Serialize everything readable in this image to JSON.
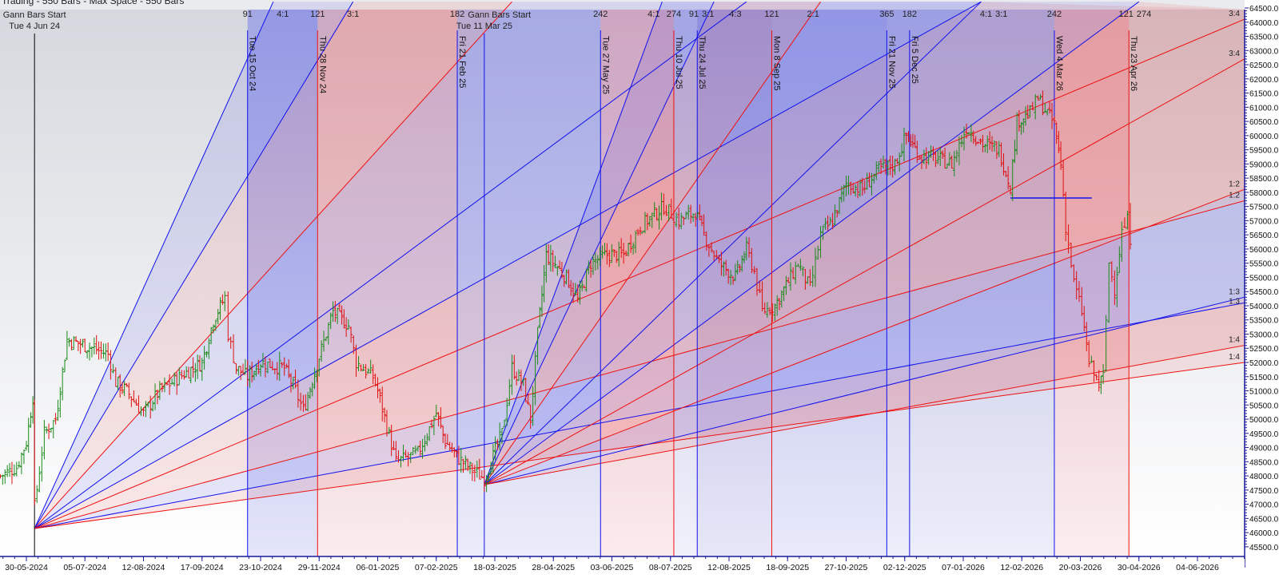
{
  "header": {
    "title": "Trading - 550 Bars - Max Space - 550 Bars"
  },
  "chart_data": {
    "type": "ohlc-bar",
    "price_axis": {
      "min": 45500,
      "max": 64500,
      "step": 500,
      "position": "right"
    },
    "x_ticks": [
      "30-05-2024",
      "05-07-2024",
      "12-08-2024",
      "17-09-2024",
      "23-10-2024",
      "29-11-2024",
      "06-01-2025",
      "07-02-2025",
      "18-03-2025",
      "28-04-2025",
      "03-06-2025",
      "08-07-2025",
      "12-08-2025",
      "18-09-2025",
      "27-10-2025",
      "02-12-2025",
      "07-01-2026",
      "12-02-2026",
      "20-03-2026",
      "30-04-2026",
      "04-06-2026"
    ],
    "colors": {
      "up_bar": "#1a8a1a",
      "down_bar": "#e01010",
      "blue_line": "#1010ee",
      "red_line": "#ee1010",
      "start_line": "#000000"
    },
    "price_path": [
      [
        "2024-05-14",
        48000
      ],
      [
        "2024-05-24",
        48300
      ],
      [
        "2024-05-30",
        49200
      ],
      [
        "2024-06-03",
        50800
      ],
      [
        "2024-06-04",
        46900
      ],
      [
        "2024-06-10",
        49500
      ],
      [
        "2024-06-17",
        50000
      ],
      [
        "2024-06-24",
        52800
      ],
      [
        "2024-07-05",
        52600
      ],
      [
        "2024-07-20",
        52300
      ],
      [
        "2024-07-25",
        51300
      ],
      [
        "2024-08-01",
        51000
      ],
      [
        "2024-08-12",
        50200
      ],
      [
        "2024-08-22",
        51000
      ],
      [
        "2024-09-06",
        51600
      ],
      [
        "2024-09-17",
        52000
      ],
      [
        "2024-09-24",
        53500
      ],
      [
        "2024-10-01",
        54300
      ],
      [
        "2024-10-03",
        53000
      ],
      [
        "2024-10-08",
        51800
      ],
      [
        "2024-10-15",
        51500
      ],
      [
        "2024-10-23",
        52000
      ],
      [
        "2024-11-07",
        51800
      ],
      [
        "2024-11-14",
        51000
      ],
      [
        "2024-11-19",
        50300
      ],
      [
        "2024-11-29",
        52200
      ],
      [
        "2024-12-08",
        53800
      ],
      [
        "2024-12-18",
        53300
      ],
      [
        "2024-12-23",
        52000
      ],
      [
        "2025-01-03",
        51500
      ],
      [
        "2025-01-06",
        51000
      ],
      [
        "2025-01-16",
        48500
      ],
      [
        "2025-01-28",
        48800
      ],
      [
        "2025-02-07",
        50200
      ],
      [
        "2025-02-13",
        49200
      ],
      [
        "2025-02-22",
        48600
      ],
      [
        "2025-03-03",
        48200
      ],
      [
        "2025-03-11",
        47900
      ],
      [
        "2025-03-23",
        49500
      ],
      [
        "2025-03-30",
        51800
      ],
      [
        "2025-04-07",
        51200
      ],
      [
        "2025-04-12",
        50000
      ],
      [
        "2025-04-17",
        53000
      ],
      [
        "2025-04-23",
        55800
      ],
      [
        "2025-05-06",
        55000
      ],
      [
        "2025-05-13",
        54200
      ],
      [
        "2025-05-21",
        55500
      ],
      [
        "2025-05-31",
        55800
      ],
      [
        "2025-06-10",
        55800
      ],
      [
        "2025-06-20",
        56800
      ],
      [
        "2025-07-04",
        57500
      ],
      [
        "2025-07-13",
        57000
      ],
      [
        "2025-07-23",
        57300
      ],
      [
        "2025-07-28",
        56500
      ],
      [
        "2025-08-06",
        55500
      ],
      [
        "2025-08-16",
        55000
      ],
      [
        "2025-08-23",
        56000
      ],
      [
        "2025-08-28",
        55200
      ],
      [
        "2025-09-02",
        53800
      ],
      [
        "2025-09-10",
        54000
      ],
      [
        "2025-09-20",
        55000
      ],
      [
        "2025-09-25",
        55500
      ],
      [
        "2025-10-03",
        54600
      ],
      [
        "2025-10-10",
        56500
      ],
      [
        "2025-10-18",
        57000
      ],
      [
        "2025-10-27",
        58300
      ],
      [
        "2025-11-06",
        58100
      ],
      [
        "2025-11-16",
        58800
      ],
      [
        "2025-11-26",
        59000
      ],
      [
        "2025-12-03",
        60000
      ],
      [
        "2025-12-11",
        59300
      ],
      [
        "2025-12-21",
        59200
      ],
      [
        "2025-12-31",
        59000
      ],
      [
        "2026-01-09",
        60300
      ],
      [
        "2026-01-19",
        59700
      ],
      [
        "2026-01-29",
        59500
      ],
      [
        "2026-02-05",
        58200
      ],
      [
        "2026-02-09",
        60500
      ],
      [
        "2026-02-17",
        60800
      ],
      [
        "2026-02-22",
        61300
      ],
      [
        "2026-03-04",
        60400
      ],
      [
        "2026-03-08",
        59000
      ],
      [
        "2026-03-11",
        56800
      ],
      [
        "2026-03-16",
        54800
      ],
      [
        "2026-03-21",
        53800
      ],
      [
        "2026-03-26",
        52000
      ],
      [
        "2026-04-02",
        51200
      ],
      [
        "2026-04-05",
        51500
      ],
      [
        "2026-04-09",
        55500
      ],
      [
        "2026-04-13",
        54600
      ],
      [
        "2026-04-18",
        56600
      ],
      [
        "2026-04-22",
        57000
      ],
      [
        "2026-04-26",
        55800
      ]
    ],
    "gann_starts": [
      {
        "title": "Gann Bars Start",
        "date_label": "Tue 4 Jun 24",
        "date": "2024-06-04",
        "price": 46145
      },
      {
        "title": "Gann Bars Start",
        "date_label": "Tue 11 Mar 25",
        "date": "2025-03-11",
        "price": 47690
      }
    ],
    "fans": [
      {
        "origin": [
          "2024-06-04",
          46145
        ],
        "lines": [
          {
            "to": [
              "2024-10-31",
              64720
            ],
            "color": "blue"
          },
          {
            "to": [
              "2024-12-21",
              64720
            ],
            "color": "blue"
          },
          {
            "to": [
              "2025-03-30",
              64720
            ],
            "color": "red"
          },
          {
            "to": [
              "2025-08-23",
              64720
            ],
            "color": "blue"
          },
          {
            "to": [
              "2026-01-18",
              64720
            ],
            "color": "blue"
          },
          {
            "to": [
              "2026-07-02",
              64100
            ],
            "color": "red",
            "label": "3:4"
          },
          {
            "to": [
              "2026-07-02",
              57700
            ],
            "color": "red",
            "label": "1:2"
          },
          {
            "to": [
              "2026-07-02",
              54100
            ],
            "color": "blue",
            "label": "1:3"
          },
          {
            "to": [
              "2026-07-02",
              52000
            ],
            "color": "red",
            "label": "1:4"
          }
        ]
      },
      {
        "origin": [
          "2025-03-11",
          47690
        ],
        "lines": [
          {
            "to": [
              "2025-07-03",
              64720
            ],
            "color": "blue"
          },
          {
            "to": [
              "2025-08-03",
              64720
            ],
            "color": "blue"
          },
          {
            "to": [
              "2025-10-10",
              64720
            ],
            "color": "red"
          },
          {
            "to": [
              "2026-01-18",
              64720
            ],
            "color": "blue"
          },
          {
            "to": [
              "2026-04-30",
              64720
            ],
            "color": "blue"
          },
          {
            "to": [
              "2026-07-02",
              62700
            ],
            "color": "red",
            "label": "3:4"
          },
          {
            "to": [
              "2026-07-02",
              58100
            ],
            "color": "red",
            "label": "1:2"
          },
          {
            "to": [
              "2026-07-02",
              54300
            ],
            "color": "blue",
            "label": "1:3"
          },
          {
            "to": [
              "2026-07-02",
              52600
            ],
            "color": "red",
            "label": "1:4"
          }
        ]
      }
    ],
    "horizontal_lines": [
      {
        "from": "2026-02-05",
        "to": "2026-03-28",
        "price": 57800,
        "color": "blue"
      }
    ],
    "time_lines": [
      {
        "date": "2024-10-15",
        "label": "Tue 15 Oct 24",
        "color": "blue"
      },
      {
        "date": "2024-11-28",
        "label": "Thu 28 Nov 24",
        "color": "red"
      },
      {
        "date": "2025-02-21",
        "label": "Fri 21 Feb 25",
        "color": "blue"
      },
      {
        "date": "2025-05-27",
        "label": "Tue 27 May 25",
        "color": "blue"
      },
      {
        "date": "2025-07-10",
        "label": "Thu 10 Jul 25",
        "color": "red"
      },
      {
        "date": "2025-07-24",
        "label": "Thu 24 Jul 25",
        "color": "blue"
      },
      {
        "date": "2025-09-08",
        "label": "Mon 8 Sep 25",
        "color": "red"
      },
      {
        "date": "2025-11-21",
        "label": "Fri 21 Nov 25",
        "color": "blue"
      },
      {
        "date": "2025-12-05",
        "label": "Fri 5 Dec 25",
        "color": "blue"
      },
      {
        "date": "2026-03-04",
        "label": "Wed 4 Mar 26",
        "color": "blue"
      },
      {
        "date": "2026-04-23",
        "label": "Thu 23 Apr 26",
        "color": "red"
      }
    ],
    "bands": [
      {
        "from": "2024-10-15",
        "to": "2024-11-28",
        "color": "#7a80e8"
      },
      {
        "from": "2024-11-28",
        "to": "2025-02-21",
        "color": "#e8a0a8"
      },
      {
        "from": "2025-02-21",
        "to": "2025-05-27",
        "color": "#9ea2e8"
      },
      {
        "from": "2025-05-27",
        "to": "2025-07-10",
        "color": "#ee9aa4"
      },
      {
        "from": "2025-07-10",
        "to": "2025-07-24",
        "color": "#b6b8ec"
      },
      {
        "from": "2025-07-24",
        "to": "2025-09-08",
        "color": "#8a86de"
      },
      {
        "from": "2025-09-08",
        "to": "2025-11-21",
        "color": "#8f96ea"
      },
      {
        "from": "2025-11-21",
        "to": "2026-03-04",
        "color": "#a6aae6"
      },
      {
        "from": "2026-03-04",
        "to": "2026-04-23",
        "color": "#f0a4ac"
      }
    ],
    "cycle_labels": [
      {
        "text": "91",
        "date": "2024-10-15"
      },
      {
        "text": "4:1",
        "date": "2024-11-06"
      },
      {
        "text": "121",
        "date": "2024-11-28"
      },
      {
        "text": "3:1",
        "date": "2024-12-21"
      },
      {
        "text": "182",
        "date": "2025-02-21"
      },
      {
        "text": "242",
        "date": "2025-05-27"
      },
      {
        "text": "4:1",
        "date": "2025-06-28"
      },
      {
        "text": "274",
        "date": "2025-07-10"
      },
      {
        "text": "91",
        "date": "2025-07-22"
      },
      {
        "text": "3:1",
        "date": "2025-07-27"
      },
      {
        "text": "4:3",
        "date": "2025-08-16"
      },
      {
        "text": "121",
        "date": "2025-09-08"
      },
      {
        "text": "2:1",
        "date": "2025-10-05"
      },
      {
        "text": "365",
        "date": "2025-11-21"
      },
      {
        "text": "182",
        "date": "2025-12-05"
      },
      {
        "text": "4:1",
        "date": "2026-01-21"
      },
      {
        "text": "3:1",
        "date": "2026-01-23"
      },
      {
        "text": "242",
        "date": "2026-03-04"
      },
      {
        "text": "121",
        "date": "2026-04-21"
      },
      {
        "text": "274",
        "date": "2026-04-24"
      }
    ]
  }
}
